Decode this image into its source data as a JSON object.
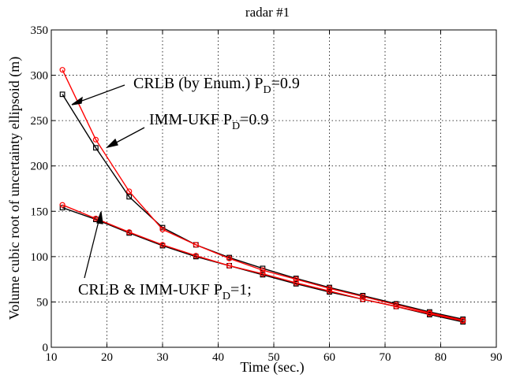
{
  "chart_data": {
    "type": "line",
    "title": "radar #1",
    "xlabel": "Time (sec.)",
    "ylabel": "Volume cubic root of uncertainty ellipsoid (m)",
    "xlim": [
      10,
      90
    ],
    "ylim": [
      0,
      350
    ],
    "x_ticks": [
      10,
      20,
      30,
      40,
      50,
      60,
      70,
      80,
      90
    ],
    "y_ticks": [
      0,
      50,
      100,
      150,
      200,
      250,
      300,
      350
    ],
    "grid": true,
    "x": [
      12,
      18,
      24,
      30,
      36,
      42,
      48,
      54,
      60,
      66,
      72,
      78,
      84
    ],
    "series": [
      {
        "name": "CRLB (by Enum.) PD=0.9",
        "color": "#000000",
        "marker": "square",
        "values": [
          279,
          220,
          166,
          132,
          113,
          99,
          87,
          76,
          66,
          57,
          48,
          39,
          31
        ]
      },
      {
        "name": "IMM-UKF PD=0.9",
        "color": "#ff0000",
        "marker": "circle",
        "values": [
          306,
          229,
          172,
          130,
          113,
          98,
          85,
          75,
          65,
          56,
          47,
          38,
          30
        ]
      },
      {
        "name": "CRLB PD=1",
        "color": "#000000",
        "marker": "square",
        "values": [
          154,
          141,
          126,
          112,
          100,
          90,
          80,
          70,
          61,
          53,
          45,
          36,
          28
        ]
      },
      {
        "name": "IMM-UKF PD=1",
        "color": "#ff0000",
        "marker": "circle",
        "values": [
          157,
          142,
          127,
          113,
          101,
          90,
          81,
          71,
          62,
          53,
          45,
          37,
          29
        ]
      }
    ],
    "annotations": [
      {
        "main": "CRLB (by Enum.) P",
        "sub": "D",
        "tail": "=0.9"
      },
      {
        "main": "IMM-UKF P",
        "sub": "D",
        "tail": "=0.9"
      },
      {
        "main": "CRLB & IMM-UKF P",
        "sub": "D",
        "tail": "=1;"
      }
    ]
  }
}
